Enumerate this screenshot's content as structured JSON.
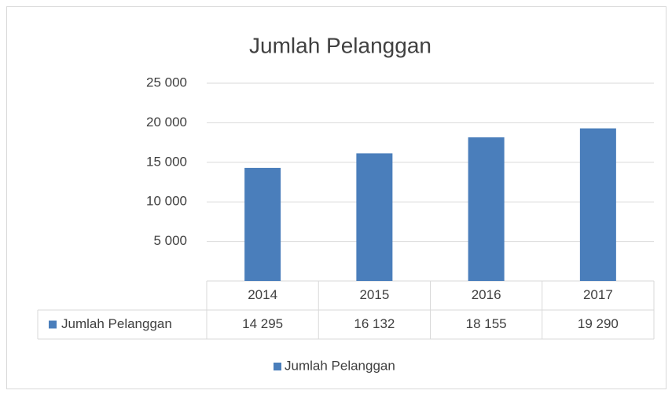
{
  "chart_data": {
    "type": "bar",
    "title": "Jumlah Pelanggan",
    "categories": [
      "2014",
      "2015",
      "2016",
      "2017"
    ],
    "series": [
      {
        "name": "Jumlah Pelanggan",
        "color": "#4a7ebb",
        "values": [
          14295,
          16132,
          18155,
          19290
        ],
        "value_labels": [
          "14 295",
          "16 132",
          "18 155",
          "19 290"
        ]
      }
    ],
    "ylim": [
      0,
      25000
    ],
    "yticks": [
      {
        "value": 5000,
        "label": "5 000"
      },
      {
        "value": 10000,
        "label": "10 000"
      },
      {
        "value": 15000,
        "label": "15 000"
      },
      {
        "value": 20000,
        "label": "20 000"
      },
      {
        "value": 25000,
        "label": "25 000"
      }
    ],
    "grid": true,
    "data_table": true,
    "legend": "bottom"
  }
}
